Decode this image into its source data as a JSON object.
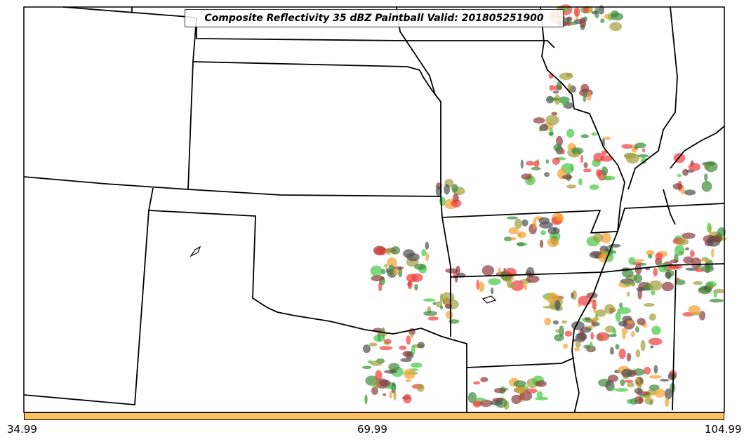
{
  "title": "Composite Reflectivity 35 dBZ Paintball Valid: 201805251900",
  "colorbar": {
    "color": "#fdc05f",
    "ticks": [
      "34.99",
      "69.99",
      "104.99"
    ]
  },
  "legend_colors": {
    "red": "#f03c3c",
    "orange": "#f5a032",
    "green": "#46c846",
    "dark_green": "#3c8c3c",
    "olive": "#a0a03c",
    "brown": "#8c3c3c",
    "gray": "#505050"
  }
}
